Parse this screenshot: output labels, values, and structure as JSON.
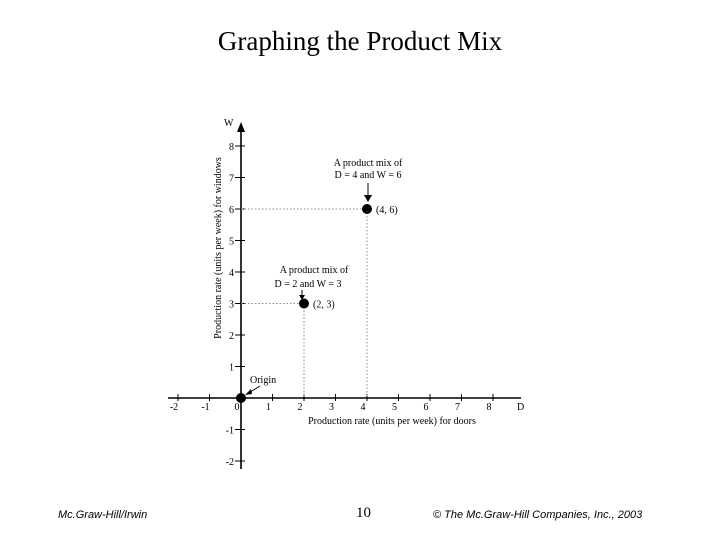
{
  "slide": {
    "title": "Graphing the Product Mix",
    "footer_left": "Mc.Graw-Hill/Irwin",
    "page_number": "10",
    "footer_right": "© The Mc.Graw-Hill Companies, Inc., 2003"
  },
  "chart_data": {
    "type": "scatter",
    "xlabel": "Production rate (units per week) for doors",
    "ylabel": "Production rate (units per week) for windows",
    "x_axis_letter": "D",
    "y_axis_letter": "W",
    "xlim": [
      -2,
      8
    ],
    "ylim": [
      -2,
      8
    ],
    "x_ticks": [
      "-2",
      "-1",
      "0",
      "1",
      "2",
      "3",
      "4",
      "5",
      "6",
      "7",
      "8"
    ],
    "y_ticks": [
      "-2",
      "-1",
      "1",
      "2",
      "3",
      "4",
      "5",
      "6",
      "7",
      "8"
    ],
    "grid": false,
    "points": [
      {
        "x": 0,
        "y": 0,
        "label": ""
      },
      {
        "x": 2,
        "y": 3,
        "label": "(2, 3)"
      },
      {
        "x": 4,
        "y": 6,
        "label": "(4, 6)"
      }
    ],
    "annotations": {
      "origin": "Origin",
      "mix_a_line1": "A product mix of",
      "mix_a_line2": "D = 2     and     W = 3",
      "mix_b_line1": "A product mix of",
      "mix_b_line2": "D = 4     and     W = 6"
    }
  }
}
